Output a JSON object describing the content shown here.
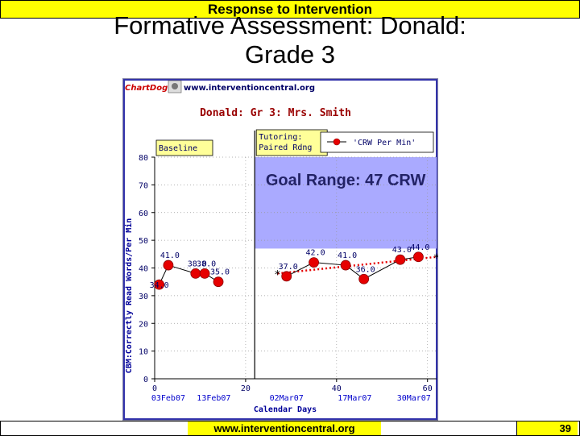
{
  "slide": {
    "banner": "Response to Intervention",
    "title_line1": "Formative Assessment: Donald:",
    "title_line2": "Grade 3",
    "footer_url": "www.interventioncentral.org",
    "page_number": "39"
  },
  "chartdog": {
    "logo_text": "ChartDog!",
    "site": "www.interventioncentral.org"
  },
  "colors": {
    "banner": "#ffff00",
    "goal_range": "#aaaaff",
    "marker": "#e60000",
    "trend": "#e60000",
    "label_red": "#cc0000",
    "axis_blue": "#0000cc"
  },
  "chart_data": {
    "type": "scatter",
    "title": "Donald: Gr 3: Mrs. Smith",
    "xlabel": "Calendar Days",
    "ylabel": "CBM:Correctly Read Words/Per Min",
    "xlim": [
      0,
      62
    ],
    "ylim": [
      0,
      80
    ],
    "x_ticks": [
      0,
      20,
      40,
      60
    ],
    "y_ticks": [
      0,
      10,
      20,
      30,
      40,
      50,
      60,
      70,
      80
    ],
    "date_labels": [
      {
        "x": 3,
        "label": "03Feb07"
      },
      {
        "x": 13,
        "label": "13Feb07"
      },
      {
        "x": 29,
        "label": "02Mar07"
      },
      {
        "x": 44,
        "label": "17Mar07"
      },
      {
        "x": 57,
        "label": "30Mar07"
      }
    ],
    "phases": [
      {
        "label": "Baseline",
        "x_start": 0,
        "x_end": 22
      },
      {
        "label_lines": [
          "Tutoring:",
          "Paired Rdng"
        ],
        "x_start": 22,
        "x_end": 62
      }
    ],
    "goal_range": {
      "label": "Goal Range: 47 CRW",
      "x_start": 22,
      "x_end": 62,
      "y_min": 47,
      "y_max": 80
    },
    "legend": {
      "entry": "'CRW Per Min'",
      "placement": "top-right"
    },
    "series": [
      {
        "points": [
          {
            "x": 1,
            "y": 34,
            "label": "34.0"
          },
          {
            "x": 3,
            "y": 41,
            "label": "41.0"
          },
          {
            "x": 9,
            "y": 38,
            "label": "38.0"
          },
          {
            "x": 11,
            "y": 38,
            "label": "38.0"
          },
          {
            "x": 14,
            "y": 35,
            "label": "35.0"
          },
          {
            "x": 29,
            "y": 37,
            "label": "37.0"
          },
          {
            "x": 35,
            "y": 42,
            "label": "42.0"
          },
          {
            "x": 42,
            "y": 41,
            "label": "41.0"
          },
          {
            "x": 46,
            "y": 36,
            "label": "36.0"
          },
          {
            "x": 54,
            "y": 43,
            "label": "43.0"
          },
          {
            "x": 58,
            "y": 44,
            "label": "44.0"
          }
        ]
      }
    ],
    "trend_line": {
      "x": [
        27,
        62
      ],
      "y": [
        38,
        44
      ]
    }
  }
}
